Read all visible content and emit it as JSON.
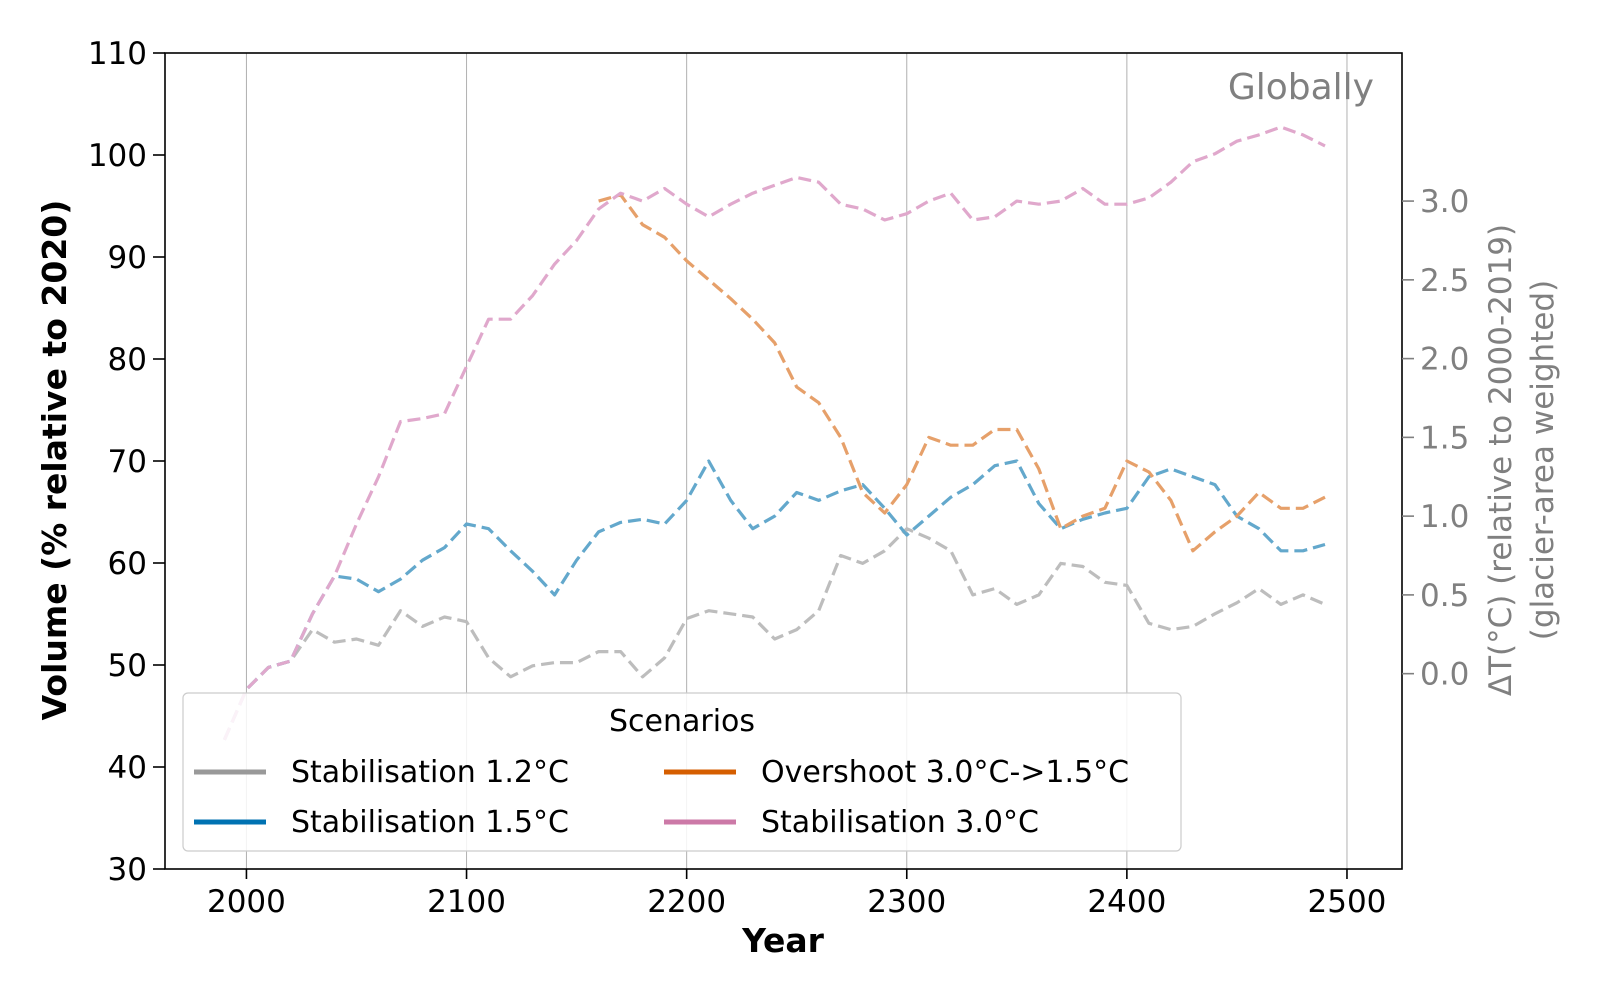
{
  "chart_data": {
    "type": "line",
    "corner_label": "Globally",
    "xlabel": "Year",
    "ylabel": "Volume (% relative to 2020)",
    "y2label_line1": "ΔT(°C) (relative to 2000-2019)",
    "y2label_line2": "(glacier-area weighted)",
    "xlim": [
      1963,
      2525
    ],
    "ylim": [
      30,
      110
    ],
    "y2lim": [
      -1.24,
      3.94
    ],
    "xticks": [
      2000,
      2100,
      2200,
      2300,
      2400,
      2500
    ],
    "yticks": [
      30,
      40,
      50,
      60,
      70,
      80,
      90,
      100,
      110
    ],
    "y2ticks": [
      0.0,
      0.5,
      1.0,
      1.5,
      2.0,
      2.5,
      3.0
    ],
    "grid": "vertical",
    "legend": {
      "title": "Scenarios",
      "position": "lower-left",
      "ncol": 2,
      "entries": [
        {
          "label": "Stabilisation 1.2°C",
          "color": "#999999"
        },
        {
          "label": "Stabilisation 1.5°C",
          "color": "#0072b2"
        },
        {
          "label": "Overshoot 3.0°C->1.5°C",
          "color": "#d55e00"
        },
        {
          "label": "Stabilisation 3.0°C",
          "color": "#cc79a7"
        }
      ]
    },
    "series": [
      {
        "name": "Stabilisation 1.2°C",
        "color": "#bdbdbd",
        "axis": "right",
        "style": "dashed",
        "x": [
          1990,
          2000,
          2010,
          2020,
          2030,
          2040,
          2050,
          2060,
          2070,
          2080,
          2090,
          2100,
          2110,
          2120,
          2130,
          2140,
          2150,
          2160,
          2170,
          2180,
          2190,
          2200,
          2210,
          2220,
          2230,
          2240,
          2250,
          2260,
          2270,
          2280,
          2290,
          2300,
          2310,
          2320,
          2330,
          2340,
          2350,
          2360,
          2370,
          2380,
          2390,
          2400,
          2410,
          2420,
          2430,
          2440,
          2450,
          2460,
          2470,
          2480,
          2490
        ],
        "y": [
          -0.42,
          -0.1,
          0.04,
          0.08,
          0.28,
          0.2,
          0.22,
          0.18,
          0.4,
          0.3,
          0.36,
          0.33,
          0.1,
          -0.02,
          0.05,
          0.07,
          0.07,
          0.14,
          0.14,
          -0.02,
          0.1,
          0.35,
          0.4,
          0.38,
          0.36,
          0.22,
          0.28,
          0.4,
          0.75,
          0.7,
          0.78,
          0.92,
          0.86,
          0.78,
          0.5,
          0.54,
          0.44,
          0.5,
          0.7,
          0.68,
          0.58,
          0.56,
          0.32,
          0.28,
          0.3,
          0.38,
          0.45,
          0.54,
          0.44,
          0.5,
          0.44
        ]
      },
      {
        "name": "Stabilisation 1.5°C",
        "color": "#63a8cc",
        "axis": "right",
        "style": "dashed",
        "x": [
          1990,
          2000,
          2010,
          2020,
          2030,
          2040,
          2050,
          2060,
          2070,
          2080,
          2090,
          2100,
          2110,
          2120,
          2130,
          2140,
          2150,
          2160,
          2170,
          2180,
          2190,
          2200,
          2210,
          2220,
          2230,
          2240,
          2250,
          2260,
          2270,
          2280,
          2290,
          2300,
          2310,
          2320,
          2330,
          2340,
          2350,
          2360,
          2370,
          2380,
          2390,
          2400,
          2410,
          2420,
          2430,
          2440,
          2450,
          2460,
          2470,
          2480,
          2490
        ],
        "y": [
          -0.42,
          -0.1,
          0.04,
          0.08,
          0.38,
          0.62,
          0.6,
          0.52,
          0.6,
          0.72,
          0.8,
          0.95,
          0.92,
          0.78,
          0.65,
          0.5,
          0.72,
          0.9,
          0.96,
          0.98,
          0.95,
          1.1,
          1.35,
          1.1,
          0.92,
          1.0,
          1.15,
          1.1,
          1.16,
          1.2,
          1.05,
          0.88,
          1.0,
          1.12,
          1.2,
          1.32,
          1.35,
          1.08,
          0.92,
          0.98,
          1.02,
          1.05,
          1.25,
          1.3,
          1.25,
          1.2,
          1.0,
          0.92,
          0.78,
          0.78,
          0.82
        ]
      },
      {
        "name": "Overshoot 3.0°C->1.5°C",
        "color": "#e6a06a",
        "axis": "right",
        "style": "dashed",
        "x": [
          2160,
          2170,
          2180,
          2190,
          2200,
          2210,
          2220,
          2230,
          2240,
          2250,
          2260,
          2270,
          2280,
          2290,
          2300,
          2310,
          2320,
          2330,
          2340,
          2350,
          2360,
          2370,
          2380,
          2390,
          2400,
          2410,
          2420,
          2430,
          2440,
          2450,
          2460,
          2470,
          2480,
          2490
        ],
        "y": [
          3.0,
          3.04,
          2.85,
          2.77,
          2.62,
          2.5,
          2.38,
          2.25,
          2.1,
          1.82,
          1.72,
          1.5,
          1.15,
          1.02,
          1.2,
          1.5,
          1.45,
          1.45,
          1.55,
          1.55,
          1.3,
          0.92,
          1.0,
          1.05,
          1.35,
          1.28,
          1.1,
          0.78,
          0.9,
          1.0,
          1.15,
          1.05,
          1.05,
          1.12
        ]
      },
      {
        "name": "Stabilisation 3.0°C",
        "color": "#e0a8cc",
        "axis": "right",
        "style": "dashed",
        "x": [
          1990,
          2000,
          2010,
          2020,
          2030,
          2040,
          2050,
          2060,
          2070,
          2080,
          2090,
          2100,
          2110,
          2120,
          2130,
          2140,
          2150,
          2160,
          2170,
          2180,
          2190,
          2200,
          2210,
          2220,
          2230,
          2240,
          2250,
          2260,
          2270,
          2280,
          2290,
          2300,
          2310,
          2320,
          2330,
          2340,
          2350,
          2360,
          2370,
          2380,
          2390,
          2400,
          2410,
          2420,
          2430,
          2440,
          2450,
          2460,
          2470,
          2480,
          2490
        ],
        "y": [
          -0.42,
          -0.1,
          0.04,
          0.08,
          0.38,
          0.62,
          0.95,
          1.25,
          1.6,
          1.62,
          1.65,
          1.95,
          2.25,
          2.25,
          2.4,
          2.6,
          2.75,
          2.95,
          3.05,
          3.0,
          3.08,
          2.98,
          2.9,
          2.98,
          3.05,
          3.1,
          3.15,
          3.12,
          2.98,
          2.95,
          2.88,
          2.92,
          3.0,
          3.05,
          2.88,
          2.9,
          3.0,
          2.98,
          3.0,
          3.08,
          2.98,
          2.98,
          3.02,
          3.12,
          3.25,
          3.3,
          3.38,
          3.42,
          3.47,
          3.42,
          3.35
        ]
      }
    ]
  }
}
